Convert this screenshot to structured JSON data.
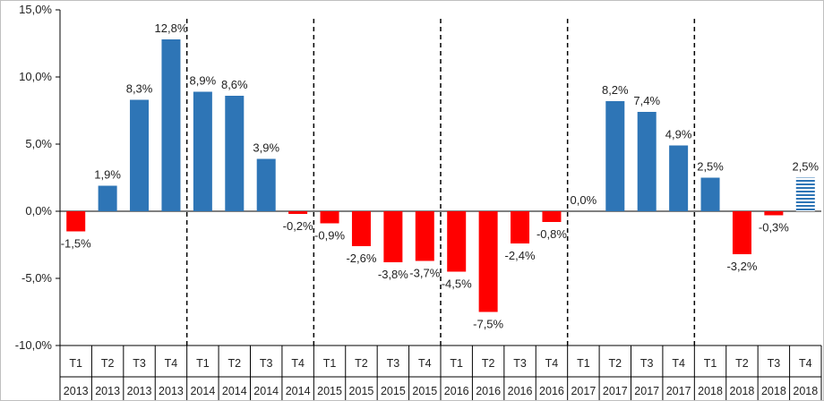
{
  "chart_data": {
    "type": "bar",
    "title": "",
    "xlabel": "",
    "ylabel": "",
    "ylim": [
      -10,
      15
    ],
    "yticks": [
      "15,0%",
      "10,0%",
      "5,0%",
      "0,0%",
      "-5,0%",
      "-10,0%"
    ],
    "ytick_values": [
      15,
      10,
      5,
      0,
      -5,
      -10
    ],
    "categories": [
      {
        "quarter": "T1",
        "year": "2013"
      },
      {
        "quarter": "T2",
        "year": "2013"
      },
      {
        "quarter": "T3",
        "year": "2013"
      },
      {
        "quarter": "T4",
        "year": "2013"
      },
      {
        "quarter": "T1",
        "year": "2014"
      },
      {
        "quarter": "T2",
        "year": "2014"
      },
      {
        "quarter": "T3",
        "year": "2014"
      },
      {
        "quarter": "T4",
        "year": "2014"
      },
      {
        "quarter": "T1",
        "year": "2015"
      },
      {
        "quarter": "T2",
        "year": "2015"
      },
      {
        "quarter": "T3",
        "year": "2015"
      },
      {
        "quarter": "T4",
        "year": "2015"
      },
      {
        "quarter": "T1",
        "year": "2016"
      },
      {
        "quarter": "T2",
        "year": "2016"
      },
      {
        "quarter": "T3",
        "year": "2016"
      },
      {
        "quarter": "T4",
        "year": "2016"
      },
      {
        "quarter": "T1",
        "year": "2017"
      },
      {
        "quarter": "T2",
        "year": "2017"
      },
      {
        "quarter": "T3",
        "year": "2017"
      },
      {
        "quarter": "T4",
        "year": "2017"
      },
      {
        "quarter": "T1",
        "year": "2018"
      },
      {
        "quarter": "T2",
        "year": "2018"
      },
      {
        "quarter": "T3",
        "year": "2018"
      },
      {
        "quarter": "T4",
        "year": "2018"
      }
    ],
    "values": [
      -1.5,
      1.9,
      8.3,
      12.8,
      8.9,
      8.6,
      3.9,
      -0.2,
      -0.9,
      -2.6,
      -3.8,
      -3.7,
      -4.5,
      -7.5,
      -2.4,
      -0.8,
      0.0,
      8.2,
      7.4,
      4.9,
      2.5,
      -3.2,
      -0.3,
      2.5
    ],
    "labels": [
      "-1,5%",
      "1,9%",
      "8,3%",
      "12,8%",
      "8,9%",
      "8,6%",
      "3,9%",
      "-0,2%",
      "-0,9%",
      "-2,6%",
      "-3,8%",
      "-3,7%",
      "-4,5%",
      "-7,5%",
      "-2,4%",
      "-0,8%",
      "0,0%",
      "8,2%",
      "7,4%",
      "4,9%",
      "2,5%",
      "-3,2%",
      "-0,3%",
      "2,5%"
    ],
    "last_bar_hatched": true,
    "year_dividers": "dashed",
    "colors": {
      "positive": "#2e75b6",
      "negative": "#ff0000",
      "gridline": "#d9d9d9",
      "axis": "#000000"
    },
    "grid": false,
    "legend": "none"
  }
}
